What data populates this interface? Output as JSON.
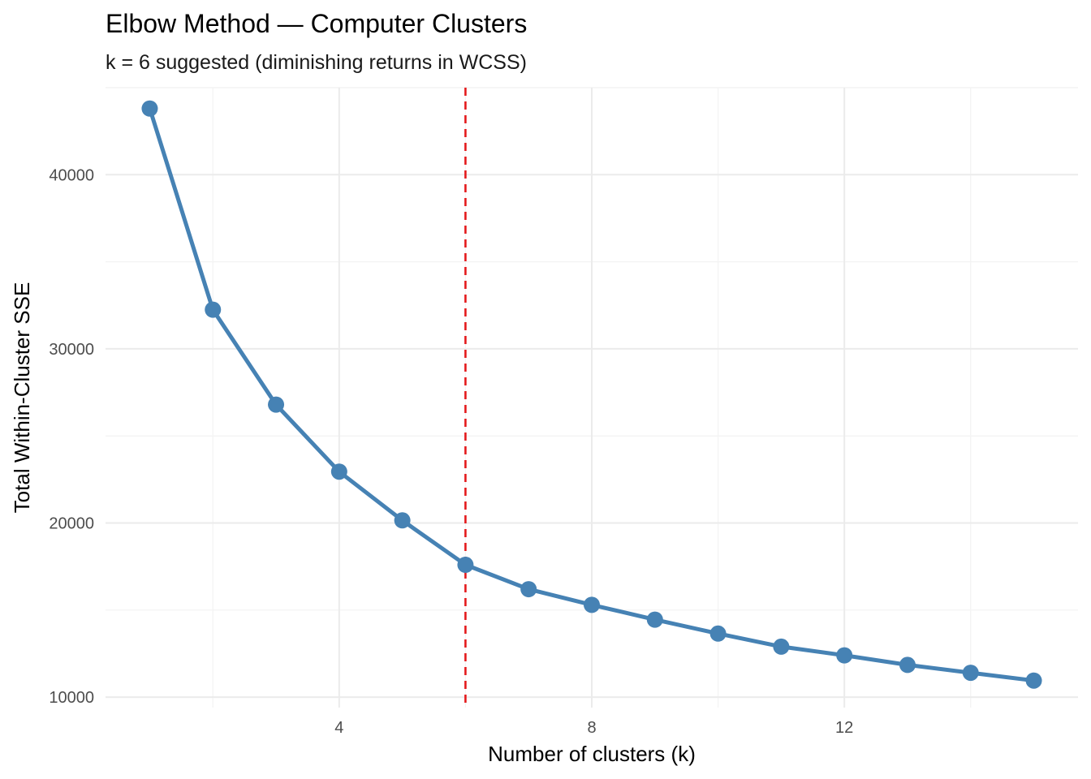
{
  "chart_data": {
    "type": "line",
    "title": "Elbow Method — Computer Clusters",
    "subtitle": "k = 6 suggested (diminishing returns in WCSS)",
    "xlabel": "Number of clusters (k)",
    "ylabel": "Total Within-Cluster SSE",
    "x": [
      1,
      2,
      3,
      4,
      5,
      6,
      7,
      8,
      9,
      10,
      11,
      12,
      13,
      14,
      15
    ],
    "series": [
      {
        "values": [
          43800,
          32250,
          26800,
          22950,
          20150,
          17600,
          16200,
          15300,
          14450,
          13650,
          12900,
          12400,
          11850,
          11400,
          10950
        ],
        "color": "#4682B4"
      }
    ],
    "xlim": [
      0.3,
      15.7
    ],
    "ylim": [
      9400,
      45000
    ],
    "x_ticks": [
      4,
      8,
      12
    ],
    "x_tick_labels": [
      "4",
      "8",
      "12"
    ],
    "y_ticks": [
      10000,
      20000,
      30000,
      40000
    ],
    "y_tick_labels": [
      "10000",
      "20000",
      "30000",
      "40000"
    ],
    "x_minor_grid": [
      2,
      6,
      10,
      14
    ],
    "y_minor_grid": [
      15000,
      25000,
      35000,
      45000
    ],
    "reference_line": {
      "x": 6,
      "style": "dashed",
      "color": "#E41A1C"
    },
    "grid": true,
    "legend": "none"
  }
}
